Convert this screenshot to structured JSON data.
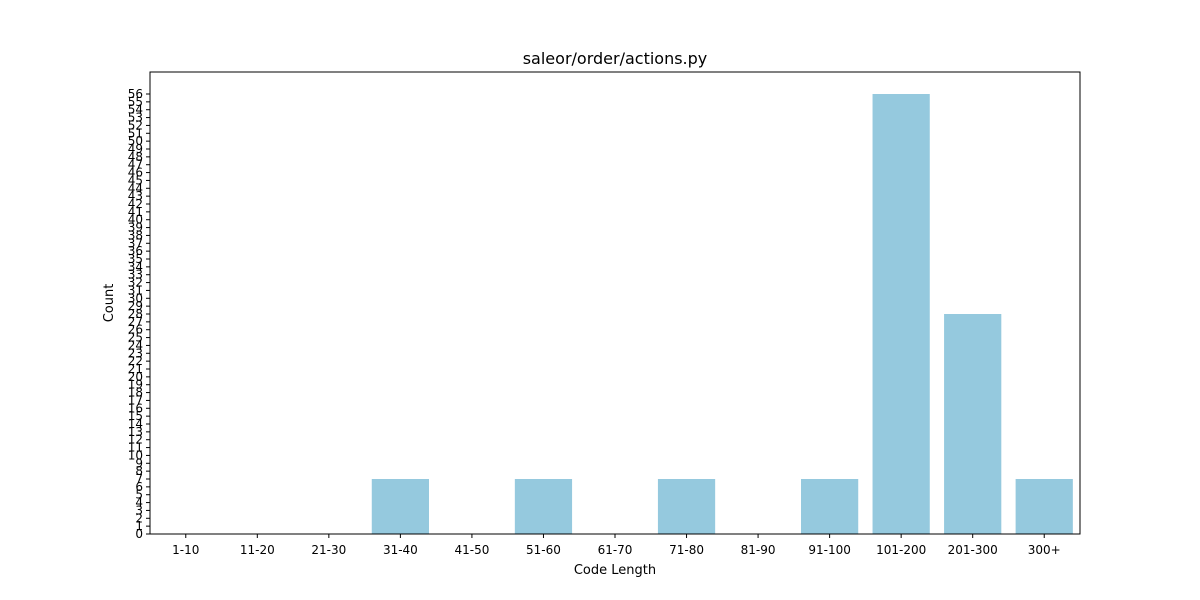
{
  "chart_data": {
    "type": "bar",
    "title": "saleor/order/actions.py",
    "xlabel": "Code Length",
    "ylabel": "Count",
    "categories": [
      "1-10",
      "11-20",
      "21-30",
      "31-40",
      "41-50",
      "51-60",
      "61-70",
      "71-80",
      "81-90",
      "91-100",
      "101-200",
      "201-300",
      "300+"
    ],
    "values": [
      0,
      0,
      0,
      7,
      0,
      7,
      0,
      7,
      0,
      7,
      56,
      28,
      7
    ],
    "ylim": [
      0,
      58.8
    ],
    "yticks": [
      0,
      1,
      2,
      3,
      4,
      5,
      6,
      7,
      8,
      9,
      10,
      11,
      12,
      13,
      14,
      15,
      16,
      17,
      18,
      19,
      20,
      21,
      22,
      23,
      24,
      25,
      26,
      27,
      28,
      29,
      30,
      31,
      32,
      33,
      34,
      35,
      36,
      37,
      38,
      39,
      40,
      41,
      42,
      43,
      44,
      45,
      46,
      47,
      48,
      49,
      50,
      51,
      52,
      53,
      54,
      55,
      56
    ],
    "bar_color": "#95c9de",
    "grid": false,
    "legend": "none"
  }
}
